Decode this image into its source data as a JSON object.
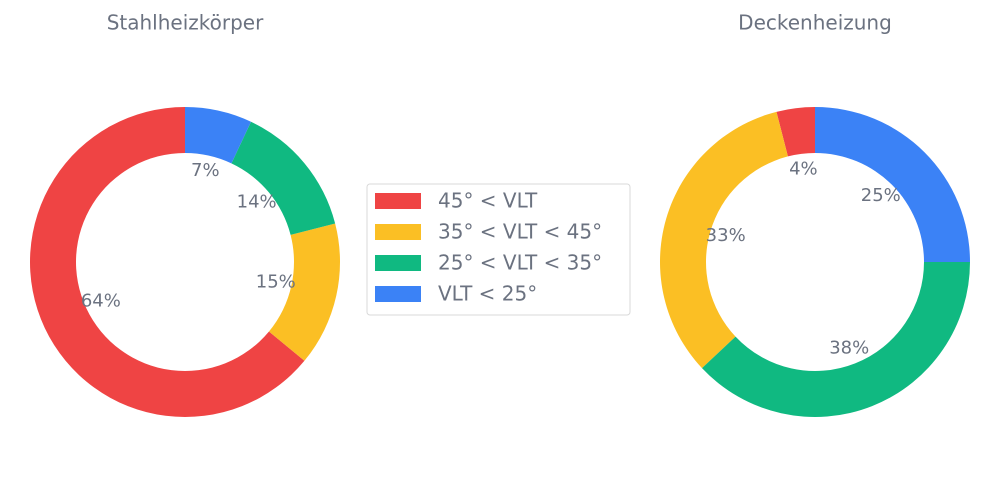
{
  "chart_data": [
    {
      "type": "donut",
      "title": "Stahlheizkörper",
      "categories": [
        "45° < VLT",
        "35° < VLT < 45°",
        "25° < VLT < 35°",
        "VLT < 25°"
      ],
      "values": [
        64,
        15,
        14,
        7
      ],
      "value_labels": [
        "64%",
        "15%",
        "14%",
        "7%"
      ],
      "colors": [
        "#ef4444",
        "#fbbf24",
        "#10b981",
        "#3b82f6"
      ]
    },
    {
      "type": "donut",
      "title": "Deckenheizung",
      "categories": [
        "45° < VLT",
        "35° < VLT < 45°",
        "25° < VLT < 35°",
        "VLT < 25°"
      ],
      "values": [
        4,
        33,
        38,
        25
      ],
      "value_labels": [
        "4%",
        "33%",
        "38%",
        "25%"
      ],
      "colors": [
        "#ef4444",
        "#fbbf24",
        "#10b981",
        "#3b82f6"
      ]
    }
  ]
}
